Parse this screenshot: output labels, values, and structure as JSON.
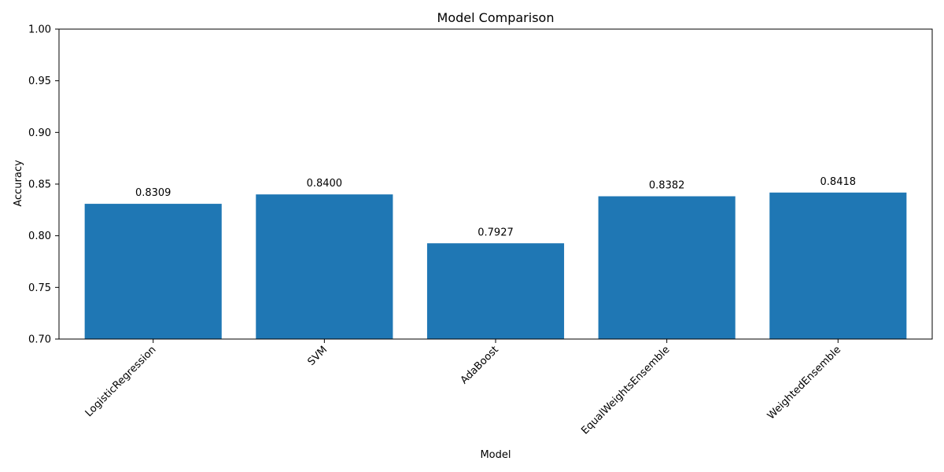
{
  "chart_data": {
    "type": "bar",
    "title": "Model Comparison",
    "xlabel": "Model",
    "ylabel": "Accuracy",
    "categories": [
      "LogisticRegression",
      "SVM",
      "AdaBoost",
      "EqualWeightsEnsemble",
      "WeightedEnsemble"
    ],
    "values": [
      0.8309,
      0.84,
      0.7927,
      0.8382,
      0.8418
    ],
    "value_labels": [
      "0.8309",
      "0.8400",
      "0.7927",
      "0.8382",
      "0.8418"
    ],
    "ylim": [
      0.7,
      1.0
    ],
    "yticks": [
      "0.70",
      "0.75",
      "0.80",
      "0.85",
      "0.90",
      "0.95",
      "1.00"
    ],
    "xtick_rotation_deg": 45,
    "grid": false,
    "bar_color": "#1f77b4"
  }
}
